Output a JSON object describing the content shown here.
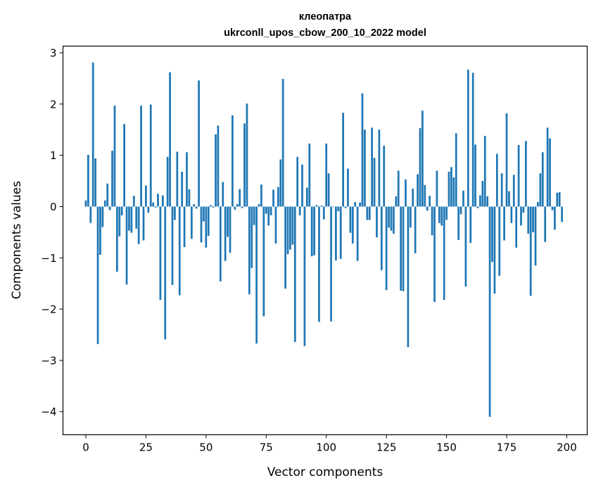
{
  "chart_data": {
    "type": "bar",
    "title": "клеопатра",
    "subtitle": "ukrconll_upos_cbow_200_10_2022 model",
    "xlabel": "Vector components",
    "ylabel": "Components values",
    "xlim": [
      -9.5,
      208.5
    ],
    "ylim": [
      -4.45,
      3.13
    ],
    "xticks": [
      0,
      25,
      50,
      75,
      100,
      125,
      150,
      175,
      200
    ],
    "yticks": [
      -4,
      -3,
      -2,
      -1,
      0,
      1,
      2,
      3
    ],
    "grid": false,
    "legend": "none",
    "bar_color": "#1f77b4",
    "series": [
      {
        "values": [
          0.12,
          1.01,
          -0.32,
          2.81,
          0.94,
          -2.68,
          -0.94,
          -0.4,
          0.12,
          0.45,
          -0.07,
          1.09,
          1.97,
          -1.27,
          -0.58,
          -0.17,
          1.61,
          -1.52,
          -0.47,
          -0.51,
          0.21,
          -0.43,
          -0.73,
          1.97,
          -0.66,
          0.41,
          -0.12,
          1.99,
          0.08,
          -0.02,
          0.25,
          -1.82,
          0.22,
          -2.59,
          0.97,
          2.62,
          -1.53,
          -0.26,
          1.07,
          -1.73,
          0.68,
          -0.79,
          1.06,
          0.34,
          -0.63,
          0.05,
          -0.04,
          2.46,
          -0.7,
          -0.29,
          -0.8,
          -0.57,
          0.03,
          -0.02,
          1.41,
          1.58,
          -1.46,
          0.48,
          -1.06,
          -0.59,
          -0.9,
          1.78,
          -0.06,
          0.05,
          0.34,
          -0.03,
          1.62,
          2.01,
          -1.71,
          -1.2,
          -0.36,
          -2.67,
          0.05,
          0.43,
          -2.14,
          -0.14,
          -0.37,
          -0.17,
          0.33,
          -0.72,
          0.38,
          0.92,
          2.49,
          -1.6,
          -0.93,
          -0.84,
          -0.74,
          -2.64,
          0.97,
          -0.17,
          0.82,
          -2.72,
          0.37,
          1.23,
          -0.97,
          -0.95,
          0.03,
          -2.25,
          0.02,
          -0.25,
          1.23,
          0.65,
          -2.24,
          -0.01,
          -1.05,
          -0.09,
          -1.02,
          1.83,
          -0.03,
          0.74,
          -0.51,
          -0.72,
          0.09,
          -1.06,
          0.08,
          2.21,
          1.5,
          -0.26,
          -0.26,
          1.54,
          0.95,
          -0.6,
          1.5,
          -1.24,
          1.19,
          -1.63,
          -0.41,
          -0.47,
          -0.53,
          0.2,
          0.7,
          -1.64,
          -1.65,
          0.53,
          -2.74,
          -0.41,
          0.35,
          -0.91,
          0.63,
          1.53,
          1.87,
          0.42,
          -0.08,
          0.21,
          -0.56,
          -1.86,
          0.7,
          -0.32,
          -0.37,
          -1.82,
          -0.26,
          0.68,
          0.77,
          0.57,
          1.43,
          -0.65,
          -0.15,
          0.31,
          -1.56,
          2.67,
          -0.71,
          2.61,
          1.21,
          -0.03,
          0.22,
          0.5,
          1.38,
          0.2,
          -4.1,
          -1.08,
          -1.7,
          1.03,
          -1.35,
          0.65,
          -0.66,
          1.82,
          0.3,
          -0.32,
          0.62,
          -0.8,
          1.2,
          -0.37,
          -0.12,
          1.28,
          -0.53,
          -1.74,
          -0.5,
          -1.15,
          0.09,
          0.65,
          1.06,
          -0.69,
          1.54,
          1.33,
          -0.07,
          -0.45,
          0.27,
          0.28,
          -0.3
        ]
      }
    ]
  }
}
